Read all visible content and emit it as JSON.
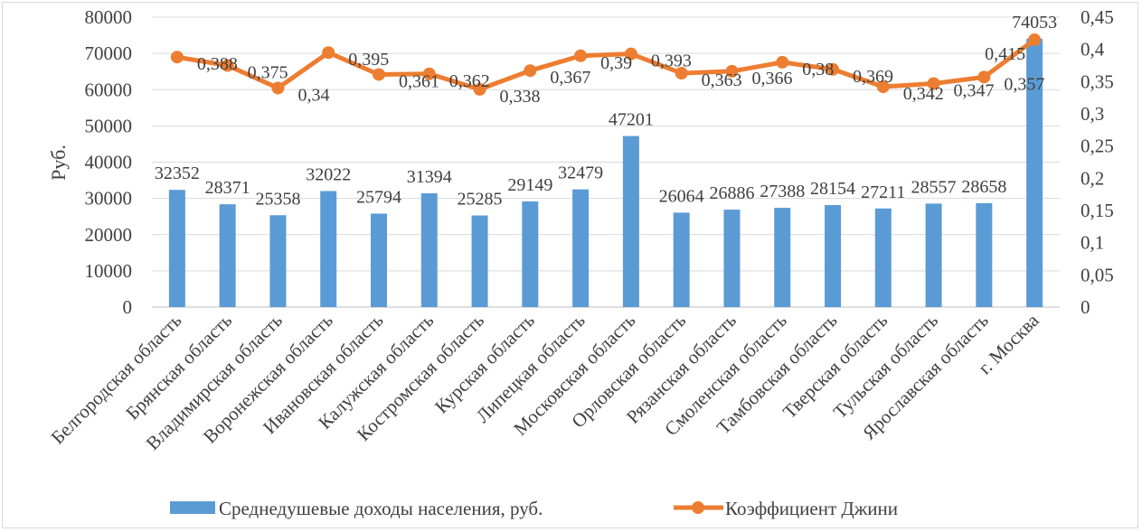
{
  "chart_data": {
    "type": "bar+line",
    "categories": [
      "Белгородская область",
      "Брянская область",
      "Владимирская область",
      "Воронежская область",
      "Ивановская область",
      "Калужская область",
      "Костромская область",
      "Курская область",
      "Липецкая область",
      "Московская область",
      "Орловская область",
      "Рязанская область",
      "Смоленская область",
      "Тамбовская область",
      "Тверская область",
      "Тульская область",
      "Ярославская область",
      "г. Москва"
    ],
    "series": [
      {
        "name": "Среднедушевые доходы населения, руб.",
        "type": "bar",
        "axis": "left",
        "color": "#5b9bd5",
        "values": [
          32352,
          28371,
          25358,
          32022,
          25794,
          31394,
          25285,
          29149,
          32479,
          47201,
          26064,
          26886,
          27388,
          28154,
          27211,
          28557,
          28658,
          74053
        ],
        "labels": [
          "32352",
          "28371",
          "25358",
          "32022",
          "25794",
          "31394",
          "25285",
          "29149",
          "32479",
          "47201",
          "26064",
          "26886",
          "27388",
          "28154",
          "27211",
          "28557",
          "28658",
          "74053"
        ]
      },
      {
        "name": "Коэффициент Джини",
        "type": "line",
        "axis": "right",
        "color": "#ed7d31",
        "values": [
          0.388,
          0.375,
          0.34,
          0.395,
          0.361,
          0.362,
          0.338,
          0.367,
          0.39,
          0.393,
          0.363,
          0.366,
          0.38,
          0.369,
          0.342,
          0.347,
          0.357,
          0.415
        ],
        "labels": [
          "0,388",
          "0,375",
          "0,34",
          "0,395",
          "0,361",
          "0,362",
          "0,338",
          "0,367",
          "0,39",
          "0,393",
          "0,363",
          "0,366",
          "0,38",
          "0,369",
          "0,342",
          "0,347",
          "0,357",
          "0,415"
        ]
      }
    ],
    "ylabel": "Руб.",
    "ylim": [
      0,
      80000
    ],
    "y_ticks": [
      "0",
      "10000",
      "20000",
      "30000",
      "40000",
      "50000",
      "60000",
      "70000",
      "80000"
    ],
    "y2lim": [
      0,
      0.45
    ],
    "y2_ticks": [
      "0",
      "0,05",
      "0,1",
      "0,15",
      "0,2",
      "0,25",
      "0,3",
      "0,35",
      "0,4",
      "0,45"
    ],
    "grid": true,
    "legend": "bottom"
  }
}
